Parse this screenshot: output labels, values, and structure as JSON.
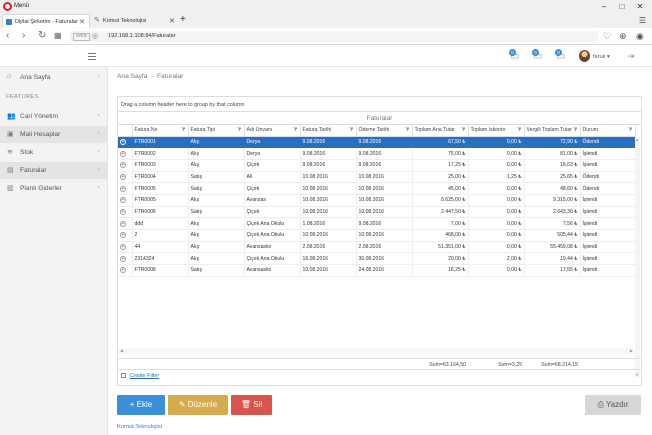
{
  "browser": {
    "menu_label": "Menü",
    "tabs": [
      {
        "title": "Dijital Şirketim - Faturalar"
      },
      {
        "title": "Komut Teknolojisi"
      }
    ],
    "address": "192.168.1.108:84/Faturalar",
    "address_badge": "WEB"
  },
  "header": {
    "badges": [
      "0",
      "0",
      "0"
    ],
    "user_name": "faruk"
  },
  "sidebar": {
    "group_label": "FEATURES",
    "items": [
      {
        "label": "Ana Sayfa",
        "icon": "home-icon"
      },
      {
        "label": "Cari Yönetim",
        "icon": "users-icon"
      },
      {
        "label": "Mali Hesaplar",
        "icon": "money-icon"
      },
      {
        "label": "Stok",
        "icon": "stack-icon"
      },
      {
        "label": "Faturalar",
        "icon": "document-icon"
      },
      {
        "label": "Planlı Giderler",
        "icon": "calendar-icon"
      }
    ]
  },
  "breadcrumb": {
    "home": "Ana Sayfa",
    "sep": "-",
    "current": "Faturalar"
  },
  "grid": {
    "group_hint": "Drag a column header here to group by that column",
    "title": "Faturalar",
    "columns": [
      "Fatura No",
      "Fatura Tipi",
      "Adı Ünvanı",
      "Fatura Tarihi",
      "Ödeme Tarihi",
      "Toplam Ana Tutar",
      "Toplam Iskonto",
      "Vergili Toplam Tutar",
      "Durum"
    ],
    "rows": [
      [
        "FTR0001",
        "Alış",
        "Derya",
        "9.08.2016",
        "9.08.2016",
        "67,50 ₺",
        "0,00 ₺",
        "72,90 ₺",
        "Ödendi"
      ],
      [
        "FTR0002",
        "Alış",
        "Derya",
        "9.08.2016",
        "9.08.2016",
        "75,00 ₺",
        "0,00 ₺",
        "81,00 ₺",
        "İşlendi"
      ],
      [
        "FTR0003",
        "Alış",
        "Çiçek",
        "9.08.2016",
        "9.08.2016",
        "17,25 ₺",
        "0,00 ₺",
        "18,63 ₺",
        "İşlendi"
      ],
      [
        "FTR0004",
        "Satış",
        "Ali",
        "10.08.2016",
        "10.08.2016",
        "25,00 ₺",
        "1,25 ₺",
        "25,65 ₺",
        "Ödendi"
      ],
      [
        "FTR0005",
        "Satış",
        "Çiçek",
        "10.08.2016",
        "10.08.2016",
        "45,00 ₺",
        "0,00 ₺",
        "48,60 ₺",
        "Ödendi"
      ],
      [
        "FTR0005",
        "Alış",
        "Avansas",
        "10.08.2016",
        "10.08.2016",
        "8.625,00 ₺",
        "0,00 ₺",
        "9.315,00 ₺",
        "İşlendi"
      ],
      [
        "FTR0006",
        "Satış",
        "Çiçek",
        "10.08.2016",
        "10.08.2016",
        "2.447,50 ₺",
        "0,00 ₺",
        "2.643,30 ₺",
        "İşlendi"
      ],
      [
        "ddd",
        "Alış",
        "Çiçek Ana Okulu",
        "1.08.2016",
        "9.08.2016",
        "7,00 ₺",
        "0,00 ₺",
        "7,56 ₺",
        "İşlendi"
      ],
      [
        "2",
        "Alış",
        "Çiçek Ana Okulu",
        "10.08.2016",
        "10.08.2016",
        "468,00 ₺",
        "0,00 ₺",
        "505,44 ₺",
        "İşlendi"
      ],
      [
        "44",
        "Alış",
        "Avansasko",
        "2.08.2016",
        "2.08.2016",
        "51.351,00 ₺",
        "0,00 ₺",
        "55.459,08 ₺",
        "İşlendi"
      ],
      [
        "2314324",
        "Alış",
        "Çiçek Ana Okulu",
        "16.08.2016",
        "30.08.2016",
        "20,00 ₺",
        "2,00 ₺",
        "19,44 ₺",
        "İşlendi"
      ],
      [
        "FTR0008",
        "Satış",
        "Avansasko",
        "10.08.2016",
        "24.08.2016",
        "16,25 ₺",
        "0,00 ₺",
        "17,55 ₺",
        "İşlendi"
      ]
    ],
    "sums": {
      "ana": "Sum=63.164,50",
      "iskonto": "Sum=3,25",
      "vergili": "Sum=68.214,15"
    },
    "create_filter": "Create Filter"
  },
  "buttons": {
    "ekle": "+ Ekle",
    "duzenle": "✎ Düzenle",
    "sil": "🗑 Sil",
    "yazdir": "Yazdır"
  },
  "footer": "Komut Teknolojisi",
  "colors": {
    "selected_row": "#2a6fbf",
    "ekle": "#3a8fd6",
    "duzenle": "#d5ac4d",
    "sil": "#d9534f"
  }
}
